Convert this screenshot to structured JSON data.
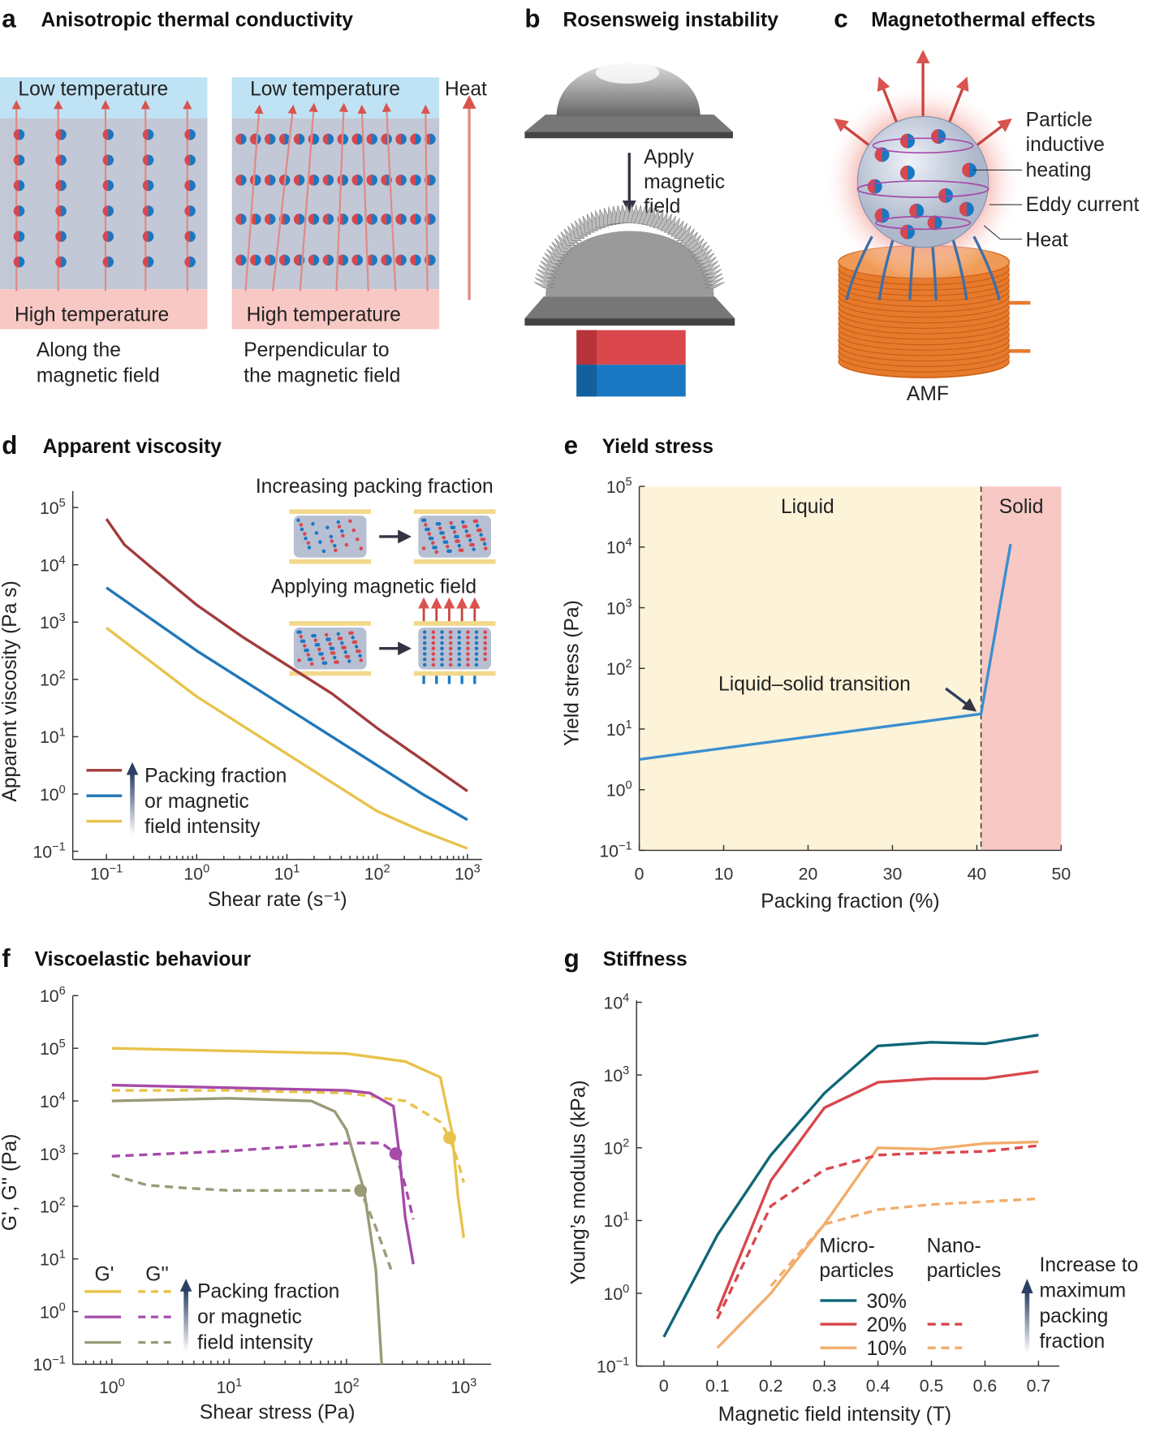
{
  "panels": {
    "a": {
      "letter": "a",
      "title": "Anisotropic thermal conductivity",
      "low": "Low temperature",
      "high": "High temperature",
      "heat": "Heat",
      "cap1": [
        "Along the",
        "magnetic field"
      ],
      "cap2": [
        "Perpendicular to",
        "the magnetic field"
      ]
    },
    "b": {
      "letter": "b",
      "title": "Rosensweig instability",
      "arrow_label": [
        "Apply",
        "magnetic",
        "field"
      ]
    },
    "c": {
      "letter": "c",
      "title": "Magnetothermal effects",
      "labels": [
        "Particle",
        "inductive",
        "heating",
        "Eddy current",
        "Heat"
      ],
      "coil": "AMF"
    },
    "d": {
      "letter": "d",
      "title": "Apparent viscosity",
      "inset1": "Increasing packing fraction",
      "inset2": "Applying magnetic field",
      "legend": [
        "Packing fraction",
        "or magnetic",
        "field intensity"
      ]
    },
    "e": {
      "letter": "e",
      "title": "Yield stress",
      "liquid": "Liquid",
      "solid": "Solid",
      "annotation": "Liquid–solid transition"
    },
    "f": {
      "letter": "f",
      "title": "Viscoelastic behaviour",
      "legend_g1": "G'",
      "legend_g2": "G''",
      "legend": [
        "Packing fraction",
        "or magnetic",
        "field intensity"
      ]
    },
    "g": {
      "letter": "g",
      "title": "Stiffness",
      "micro": [
        "Micro-",
        "particles"
      ],
      "nano": [
        "Nano-",
        "particles"
      ],
      "pct": [
        "30%",
        "20%",
        "10%"
      ],
      "increase": [
        "Increase to",
        "maximum",
        "packing",
        "fraction"
      ]
    }
  },
  "chart_data": [
    {
      "id": "d",
      "type": "line",
      "title": "Apparent viscosity",
      "xlabel": "Shear rate (s⁻¹)",
      "ylabel": "Apparent viscosity (Pa s)",
      "xscale": "log",
      "yscale": "log",
      "xlim_log10": [
        -1,
        3
      ],
      "ylim_log10": [
        -1,
        5
      ],
      "xticks_exp": [
        "-1",
        "0",
        "1",
        "2",
        "3"
      ],
      "yticks_exp": [
        "-1",
        "0",
        "1",
        "2",
        "3",
        "4",
        "5"
      ],
      "series": [
        {
          "name": "highest",
          "color": "#a23b3b",
          "log10_x": [
            -1,
            -0.8,
            -0.5,
            0,
            0.5,
            1,
            1.5,
            2,
            2.5,
            3
          ],
          "log10_y": [
            4.8,
            4.35,
            3.95,
            3.3,
            2.75,
            2.25,
            1.75,
            1.15,
            0.6,
            0.05
          ]
        },
        {
          "name": "middle",
          "color": "#1f77b8",
          "log10_x": [
            -1,
            -0.5,
            0,
            0.5,
            1,
            1.5,
            2,
            2.5,
            3
          ],
          "log10_y": [
            3.6,
            3.05,
            2.5,
            2.0,
            1.5,
            1.0,
            0.5,
            0.0,
            -0.45
          ]
        },
        {
          "name": "lowest",
          "color": "#e8c24a",
          "log10_x": [
            -1,
            -0.5,
            0,
            0.5,
            1,
            1.5,
            2,
            2.5,
            3
          ],
          "log10_y": [
            2.9,
            2.3,
            1.7,
            1.2,
            0.7,
            0.2,
            -0.3,
            -0.65,
            -0.95
          ]
        }
      ]
    },
    {
      "id": "e",
      "type": "line",
      "title": "Yield stress",
      "xlabel": "Packing fraction (%)",
      "ylabel": "Yield stress (Pa)",
      "xlim": [
        0,
        50
      ],
      "ylim_log10": [
        -1,
        5
      ],
      "xticks": [
        "0",
        "10",
        "20",
        "30",
        "40",
        "50"
      ],
      "yticks_exp": [
        "-1",
        "0",
        "1",
        "2",
        "3",
        "4",
        "5"
      ],
      "transition_x": 40.5,
      "series": [
        {
          "name": "yield stress",
          "color": "#3a8fd0",
          "x": [
            0,
            40.5,
            44
          ],
          "log10_y": [
            0.5,
            1.25,
            4.05
          ]
        }
      ]
    },
    {
      "id": "f",
      "type": "line",
      "title": "Viscoelastic behaviour",
      "xlabel": "Shear stress (Pa)",
      "ylabel": "G', G'' (Pa)",
      "xscale": "log",
      "yscale": "log",
      "xlim_log10": [
        -0.2,
        3.2
      ],
      "ylim_log10": [
        -1,
        6
      ],
      "xticks_exp": [
        "0",
        "1",
        "2",
        "3"
      ],
      "yticks_exp": [
        "-1",
        "0",
        "1",
        "2",
        "3",
        "4",
        "5",
        "6"
      ],
      "series": [
        {
          "name": "G' high",
          "color": "#e8c24a",
          "dash": false,
          "log10_x": [
            0,
            1,
            2,
            2.5,
            2.8,
            2.9,
            2.95,
            3.0
          ],
          "log10_y": [
            5.0,
            4.95,
            4.9,
            4.75,
            4.45,
            3.4,
            2.2,
            1.4
          ]
        },
        {
          "name": "G'' high",
          "color": "#e8c24a",
          "dash": true,
          "log10_x": [
            0,
            1,
            2,
            2.5,
            2.8,
            2.88,
            2.95,
            3.0
          ],
          "log10_y": [
            4.2,
            4.2,
            4.15,
            4.0,
            3.6,
            3.3,
            2.85,
            2.45
          ],
          "crossover": [
            2.88,
            3.3
          ]
        },
        {
          "name": "G' mid",
          "color": "#a54aa8",
          "dash": false,
          "log10_x": [
            0,
            1,
            2,
            2.2,
            2.4,
            2.45,
            2.5,
            2.57
          ],
          "log10_y": [
            4.3,
            4.25,
            4.2,
            4.15,
            3.9,
            3.0,
            1.8,
            0.9
          ]
        },
        {
          "name": "G'' mid",
          "color": "#a54aa8",
          "dash": true,
          "log10_x": [
            0,
            1,
            2,
            2.3,
            2.42,
            2.5,
            2.57
          ],
          "log10_y": [
            2.95,
            3.05,
            3.2,
            3.2,
            3.0,
            2.4,
            1.75
          ],
          "crossover": [
            2.42,
            3.0
          ]
        },
        {
          "name": "G' low",
          "color": "#9a9a78",
          "dash": false,
          "log10_x": [
            0,
            1,
            1.7,
            1.9,
            2.0,
            2.15,
            2.25,
            2.3
          ],
          "log10_y": [
            4.0,
            4.05,
            4.0,
            3.8,
            3.45,
            2.3,
            0.8,
            -1.0
          ]
        },
        {
          "name": "G'' low",
          "color": "#9a9a78",
          "dash": true,
          "log10_x": [
            0,
            0.3,
            0.6,
            1,
            1.5,
            1.9,
            2.12,
            2.25,
            2.38
          ],
          "log10_y": [
            2.6,
            2.4,
            2.35,
            2.3,
            2.3,
            2.3,
            2.3,
            1.6,
            0.8
          ],
          "crossover": [
            2.12,
            2.3
          ]
        }
      ]
    },
    {
      "id": "g",
      "type": "line",
      "title": "Stiffness",
      "xlabel": "Magnetic field intensity (T)",
      "ylabel": "Young’s modulus (kPa)",
      "xlim": [
        -0.05,
        0.72
      ],
      "ylim_log10": [
        -1,
        4
      ],
      "xticks": [
        "0",
        "0.1",
        "0.2",
        "0.3",
        "0.4",
        "0.5",
        "0.6",
        "0.7"
      ],
      "yticks_exp": [
        "-1",
        "0",
        "1",
        "2",
        "3",
        "4"
      ],
      "series": [
        {
          "name": "Microparticles 30%",
          "color": "#0e6677",
          "dash": false,
          "x": [
            0.0,
            0.1,
            0.2,
            0.3,
            0.4,
            0.5,
            0.6,
            0.7
          ],
          "log10_y": [
            -0.6,
            0.8,
            1.9,
            2.75,
            3.4,
            3.45,
            3.43,
            3.55
          ]
        },
        {
          "name": "Microparticles 20%",
          "color": "#d9464c",
          "dash": false,
          "x": [
            0.1,
            0.2,
            0.3,
            0.4,
            0.5,
            0.6,
            0.7
          ],
          "log10_y": [
            -0.25,
            1.55,
            2.55,
            2.9,
            2.95,
            2.95,
            3.05
          ]
        },
        {
          "name": "Microparticles 10%",
          "color": "#f2ad6b",
          "dash": false,
          "x": [
            0.1,
            0.2,
            0.3,
            0.4,
            0.5,
            0.6,
            0.7
          ],
          "log10_y": [
            -0.75,
            0.0,
            0.95,
            2.0,
            1.98,
            2.06,
            2.08
          ]
        },
        {
          "name": "Nanoparticles 20%",
          "color": "#d9464c",
          "dash": true,
          "x": [
            0.1,
            0.2,
            0.3,
            0.4,
            0.5,
            0.6,
            0.7
          ],
          "log10_y": [
            -0.35,
            1.2,
            1.7,
            1.9,
            1.93,
            1.95,
            2.03
          ]
        },
        {
          "name": "Nanoparticles 10%",
          "color": "#f2ad6b",
          "dash": true,
          "x": [
            0.2,
            0.3,
            0.4,
            0.5,
            0.6,
            0.7
          ],
          "log10_y": [
            0.1,
            0.95,
            1.15,
            1.22,
            1.26,
            1.3
          ]
        }
      ]
    }
  ]
}
